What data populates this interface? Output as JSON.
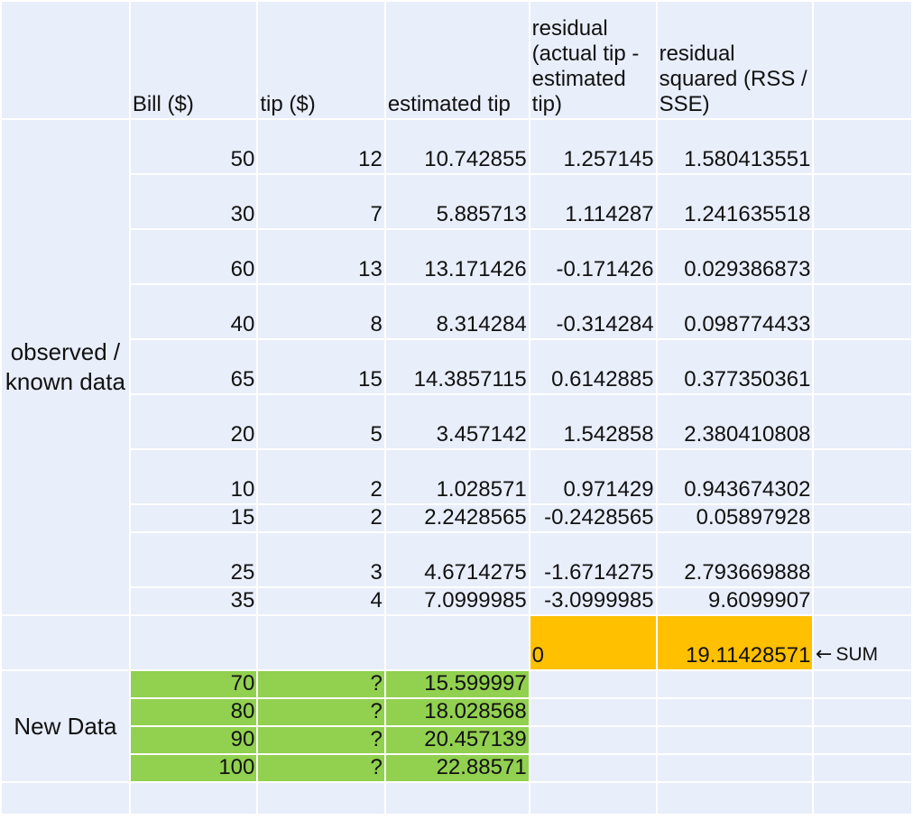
{
  "headers": {
    "bill": "Bill ($)",
    "tip": "tip ($)",
    "estimated": "estimated tip",
    "residual": "residual (actual tip  - estimated tip)",
    "residual_sq": "residual squared (RSS / SSE)"
  },
  "observed_label": "observed / known data",
  "observed_rows": [
    {
      "bill": "50",
      "tip": "12",
      "est": "10.742855",
      "res": "1.257145",
      "sq": "1.580413551"
    },
    {
      "bill": "30",
      "tip": "7",
      "est": "5.885713",
      "res": "1.114287",
      "sq": "1.241635518"
    },
    {
      "bill": "60",
      "tip": "13",
      "est": "13.171426",
      "res": "-0.171426",
      "sq": "0.029386873"
    },
    {
      "bill": "40",
      "tip": "8",
      "est": "8.314284",
      "res": "-0.314284",
      "sq": "0.098774433"
    },
    {
      "bill": "65",
      "tip": "15",
      "est": "14.3857115",
      "res": "0.6142885",
      "sq": "0.377350361"
    },
    {
      "bill": "20",
      "tip": "5",
      "est": "3.457142",
      "res": "1.542858",
      "sq": "2.380410808"
    },
    {
      "bill": "10",
      "tip": "2",
      "est": "1.028571",
      "res": "0.971429",
      "sq": "0.943674302"
    },
    {
      "bill": "15",
      "tip": "2",
      "est": "2.2428565",
      "res": "-0.2428565",
      "sq": "0.05897928"
    },
    {
      "bill": "25",
      "tip": "3",
      "est": "4.6714275",
      "res": "-1.6714275",
      "sq": "2.793669888"
    },
    {
      "bill": "35",
      "tip": "4",
      "est": "7.0999985",
      "res": "-3.0999985",
      "sq": "9.6099907"
    }
  ],
  "sum_row": {
    "residual_sum": "0",
    "sq_sum": "19.11428571",
    "arrow": "←",
    "note": "SUM"
  },
  "new_label": "New Data",
  "new_rows": [
    {
      "bill": "70",
      "tip": "?",
      "est": "15.599997"
    },
    {
      "bill": "80",
      "tip": "?",
      "est": "18.028568"
    },
    {
      "bill": "90",
      "tip": "?",
      "est": "20.457139"
    },
    {
      "bill": "100",
      "tip": "?",
      "est": "22.88571"
    }
  ],
  "colors": {
    "cell": "#e8eefa",
    "green": "#92d050",
    "gold": "#ffc000"
  }
}
